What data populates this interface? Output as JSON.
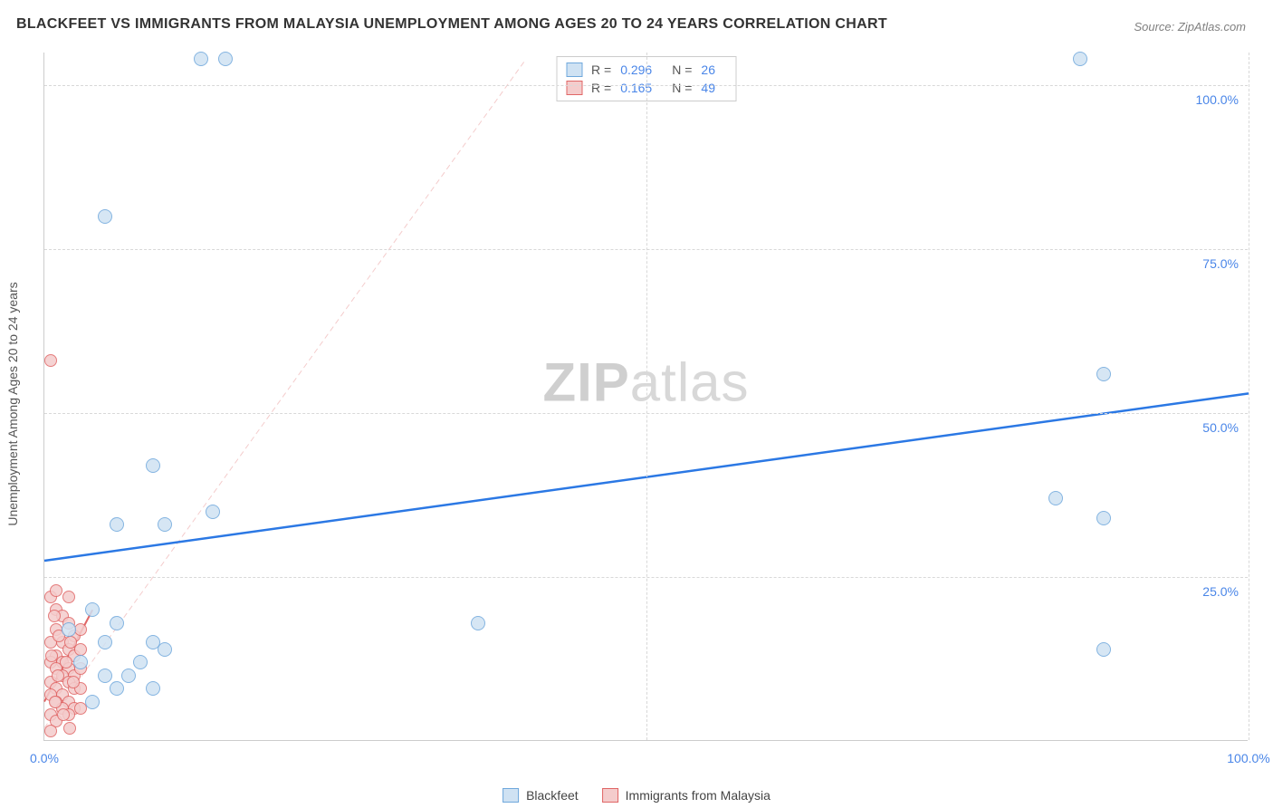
{
  "title": "BLACKFEET VS IMMIGRANTS FROM MALAYSIA UNEMPLOYMENT AMONG AGES 20 TO 24 YEARS CORRELATION CHART",
  "source": "Source: ZipAtlas.com",
  "y_axis_title": "Unemployment Among Ages 20 to 24 years",
  "watermark_a": "ZIP",
  "watermark_b": "atlas",
  "chart": {
    "type": "scatter",
    "xlim": [
      0,
      100
    ],
    "ylim": [
      0,
      105
    ],
    "x_ticks": [
      0,
      50,
      100
    ],
    "y_ticks": [
      25,
      50,
      75,
      100
    ],
    "x_tick_labels": [
      "0.0%",
      "",
      "100.0%"
    ],
    "y_tick_labels": [
      "25.0%",
      "50.0%",
      "75.0%",
      "100.0%"
    ],
    "grid_color": "#d8d8d8",
    "background_color": "#ffffff",
    "axis_label_color": "#4a86e8",
    "series": [
      {
        "name": "Blackfeet",
        "fill": "#cfe2f3",
        "stroke": "#6fa8dc",
        "marker_radius": 8,
        "points": [
          [
            13,
            104
          ],
          [
            15,
            104
          ],
          [
            86,
            104
          ],
          [
            5,
            80
          ],
          [
            88,
            56
          ],
          [
            9,
            42
          ],
          [
            6,
            33
          ],
          [
            10,
            33
          ],
          [
            14,
            35
          ],
          [
            84,
            37
          ],
          [
            88,
            34
          ],
          [
            36,
            18
          ],
          [
            88,
            14
          ],
          [
            4,
            20
          ],
          [
            6,
            18
          ],
          [
            9,
            15
          ],
          [
            5,
            15
          ],
          [
            3,
            12
          ],
          [
            5,
            10
          ],
          [
            7,
            10
          ],
          [
            10,
            14
          ],
          [
            6,
            8
          ],
          [
            9,
            8
          ],
          [
            8,
            12
          ],
          [
            4,
            6
          ],
          [
            2,
            17
          ]
        ],
        "trend": {
          "x1": 0,
          "y1": 27.5,
          "x2": 100,
          "y2": 53,
          "stroke": "#2b78e4",
          "width": 2.5,
          "dash": ""
        }
      },
      {
        "name": "Immigrants from Malaysia",
        "fill": "#f4cccc",
        "stroke": "#e06666",
        "marker_radius": 7,
        "points": [
          [
            0.5,
            58
          ],
          [
            0.5,
            22
          ],
          [
            1,
            20
          ],
          [
            1.5,
            19
          ],
          [
            2,
            18
          ],
          [
            1,
            17
          ],
          [
            2.5,
            16
          ],
          [
            0.5,
            15
          ],
          [
            1.5,
            15
          ],
          [
            2,
            14
          ],
          [
            1,
            13
          ],
          [
            2.5,
            13
          ],
          [
            1.5,
            12
          ],
          [
            0.5,
            12
          ],
          [
            2,
            11
          ],
          [
            1,
            11
          ],
          [
            2.5,
            10
          ],
          [
            1.5,
            10
          ],
          [
            0.5,
            9
          ],
          [
            2,
            9
          ],
          [
            1,
            8
          ],
          [
            2.5,
            8
          ],
          [
            1.5,
            7
          ],
          [
            0.5,
            7
          ],
          [
            2,
            6
          ],
          [
            1,
            6
          ],
          [
            2.5,
            5
          ],
          [
            1.5,
            5
          ],
          [
            0.5,
            4
          ],
          [
            2,
            4
          ],
          [
            1,
            3
          ],
          [
            0.5,
            1.5
          ],
          [
            3,
            17
          ],
          [
            3,
            14
          ],
          [
            3,
            11
          ],
          [
            3,
            8
          ],
          [
            3,
            5
          ],
          [
            1,
            23
          ],
          [
            2,
            22
          ],
          [
            0.8,
            19
          ],
          [
            1.2,
            16
          ],
          [
            2.2,
            15
          ],
          [
            0.6,
            13
          ],
          [
            1.8,
            12
          ],
          [
            1.1,
            10
          ],
          [
            2.4,
            9
          ],
          [
            0.9,
            6
          ],
          [
            1.6,
            4
          ],
          [
            2.1,
            2
          ]
        ],
        "trend": {
          "x1": 0,
          "y1": 6,
          "x2": 4,
          "y2": 20,
          "stroke": "#e06666",
          "width": 2,
          "dash": ""
        },
        "trend_ext": {
          "x1": 0,
          "y1": 2,
          "x2": 40,
          "y2": 104,
          "stroke": "#f4cccc",
          "width": 1,
          "dash": "6 4"
        }
      }
    ],
    "stats": [
      {
        "swatch_fill": "#cfe2f3",
        "swatch_stroke": "#6fa8dc",
        "r": "0.296",
        "n": "26"
      },
      {
        "swatch_fill": "#f4cccc",
        "swatch_stroke": "#e06666",
        "r": "0.165",
        "n": "49"
      }
    ],
    "legend": [
      {
        "label": "Blackfeet",
        "fill": "#cfe2f3",
        "stroke": "#6fa8dc"
      },
      {
        "label": "Immigrants from Malaysia",
        "fill": "#f4cccc",
        "stroke": "#e06666"
      }
    ]
  }
}
